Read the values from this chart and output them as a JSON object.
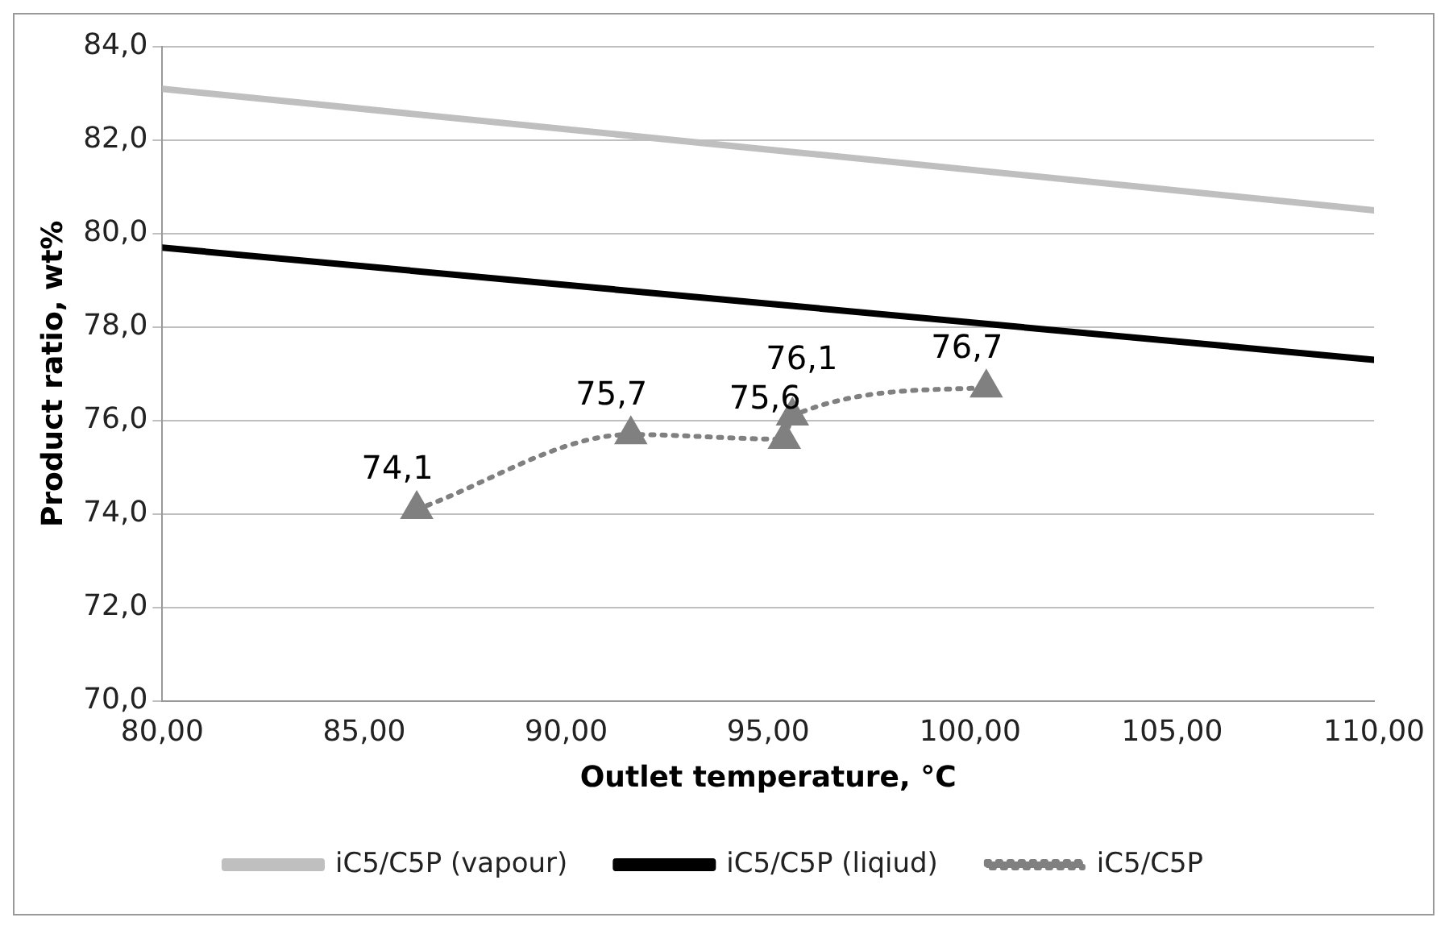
{
  "chart_data": {
    "type": "line",
    "xlabel": "Outlet temperature, °C",
    "ylabel": "Product ratio, wt%",
    "xlim": [
      80,
      110
    ],
    "xticks": [
      {
        "value": 80,
        "label": "80,00"
      },
      {
        "value": 85,
        "label": "85,00"
      },
      {
        "value": 90,
        "label": "90,00"
      },
      {
        "value": 95,
        "label": "95,00"
      },
      {
        "value": 100,
        "label": "100,00"
      },
      {
        "value": 105,
        "label": "105,00"
      },
      {
        "value": 110,
        "label": "110,00"
      }
    ],
    "ylim": [
      70,
      84
    ],
    "yticks": [
      {
        "value": 70,
        "label": "70,0"
      },
      {
        "value": 72,
        "label": "72,0"
      },
      {
        "value": 74,
        "label": "74,0"
      },
      {
        "value": 76,
        "label": "76,0"
      },
      {
        "value": 78,
        "label": "78,0"
      },
      {
        "value": 80,
        "label": "80,0"
      },
      {
        "value": 82,
        "label": "82,0"
      },
      {
        "value": 84,
        "label": "84,0"
      }
    ],
    "grid": "y",
    "legend": "bottom",
    "series": [
      {
        "name": "iC5/C5P (vapour)",
        "color": "#bfbfbf",
        "x": [
          80,
          110
        ],
        "values": [
          83.1,
          80.5
        ],
        "marker": "none",
        "line_style": "solid"
      },
      {
        "name": "iC5/C5P (liqiud)",
        "color": "#000000",
        "x": [
          80,
          110
        ],
        "values": [
          79.7,
          77.3
        ],
        "marker": "none",
        "line_style": "solid"
      },
      {
        "name": "iC5/C5P",
        "color": "#808080",
        "x": [
          86.3,
          91.6,
          95.4,
          95.6,
          100.4
        ],
        "values": [
          74.1,
          75.7,
          75.6,
          76.1,
          76.7
        ],
        "marker": "triangle",
        "line_style": "dotted",
        "value_labels": [
          "74,1",
          "75,7",
          "75,6",
          "76,1",
          "76,7"
        ]
      }
    ]
  }
}
